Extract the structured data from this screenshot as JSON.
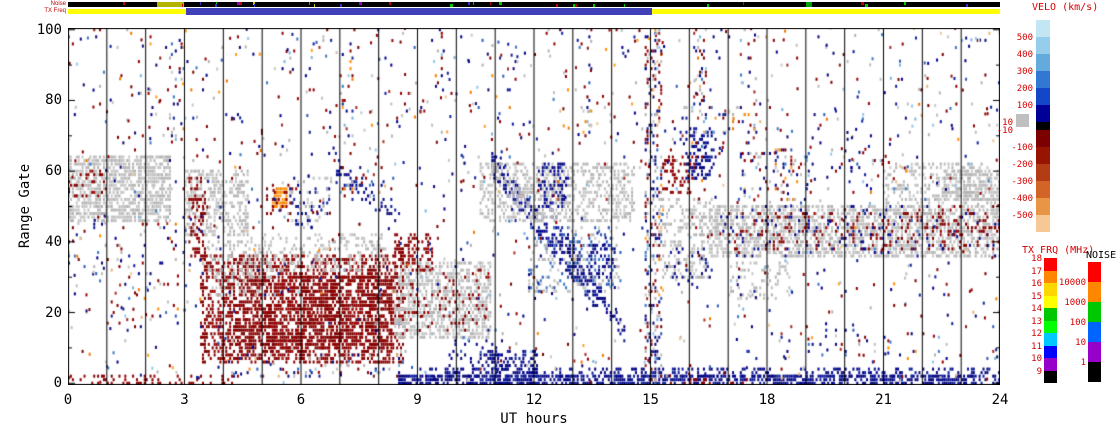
{
  "labels": {
    "ut_hours": "UT hours",
    "range_gate": "Range Gate"
  },
  "strips": {
    "noise_label": "Noise",
    "txfreq_label": "TX Freq",
    "noise_base_color": "#000000",
    "txfreq_base_color": "#ffff00",
    "highlight": {
      "h0": 3.05,
      "h1": 15.05,
      "color": "#4040b8"
    },
    "noise_segments": [
      {
        "h0": 2.3,
        "h1": 3.0,
        "c": "#b4b400"
      },
      {
        "h0": 19.0,
        "h1": 19.15,
        "c": "#00a000"
      }
    ],
    "specks": {
      "count": 30,
      "colors": [
        "#00c800",
        "#c8c800",
        "#3232c8",
        "#c80000",
        "#9600c8"
      ]
    }
  },
  "axes": {
    "x": {
      "label": "UT hours",
      "min": 0,
      "max": 24,
      "ticks": [
        0,
        3,
        6,
        9,
        12,
        15,
        18,
        21,
        24
      ],
      "minor_step": 1
    },
    "y": {
      "label": "Range Gate",
      "min": 0,
      "max": 100,
      "ticks": [
        0,
        20,
        40,
        60,
        80,
        100
      ],
      "minor_step": 10
    }
  },
  "colorbars": {
    "velo": {
      "label": "VELO (km/s)",
      "ticks": [
        {
          "t": "500"
        },
        {
          "t": "400"
        },
        {
          "t": "300"
        },
        {
          "t": "200"
        },
        {
          "t": "100"
        },
        {
          "t": "10",
          "short": true
        },
        {
          "t": "-10",
          "short": true
        },
        {
          "t": "-100"
        },
        {
          "t": "-200"
        },
        {
          "t": "-300"
        },
        {
          "t": "-400"
        },
        {
          "t": "-500"
        }
      ],
      "colors": [
        "#c3e6f5",
        "#96cdeb",
        "#64aadc",
        "#3278d2",
        "#1446c8",
        "#000096",
        "#000000",
        "#7d0000",
        "#961400",
        "#b43c14",
        "#d26428",
        "#e89646",
        "#f5c896"
      ],
      "seg_heights": [
        17,
        17,
        17,
        17,
        17,
        17,
        8,
        17,
        17,
        17,
        17,
        17,
        17
      ],
      "ground_scatter_color": "#bfbfbf"
    },
    "txfrq": {
      "label": "TX FRQ (MHz)",
      "ticks": [
        "18",
        "17",
        "16",
        "15",
        "14",
        "13",
        "12",
        "11",
        "10",
        "9"
      ],
      "colors": [
        "#ff0000",
        "#ff8700",
        "#ffd700",
        "#ffff00",
        "#00c800",
        "#00ff00",
        "#00c8ff",
        "#0000ff",
        "#9600c8",
        "#000000"
      ]
    },
    "noise": {
      "label": "NOISE",
      "ticks": [
        "10000",
        "1000",
        "100",
        "10",
        "1"
      ],
      "colors": [
        "#ff0000",
        "#ff8700",
        "#00c800",
        "#0064ff",
        "#9600c8",
        "#000000"
      ]
    }
  },
  "chart_data": {
    "type": "heatmap",
    "title": "",
    "xlabel": "UT hours",
    "ylabel": "Range Gate",
    "xlim": [
      0,
      24
    ],
    "ylim": [
      0,
      100
    ],
    "grid": "vertical hour lines",
    "legend_position": "right colorbars (velocity km/s, tx frequency MHz, noise)",
    "seed": 1337,
    "palette": {
      "gray": [
        "#bfbfbf",
        "#c9c9c9",
        "#b3b3b3"
      ],
      "dred": [
        "#8b0000",
        "#7d0000",
        "#960000"
      ],
      "red": [
        "#a52a2a",
        "#b03020",
        "#8b1a1a"
      ],
      "blue": [
        "#00008b",
        "#101f9c",
        "#0a0a78"
      ],
      "mblue": [
        "#2e5cb8",
        "#3c78c8"
      ],
      "lblue": [
        "#7ab4e0",
        "#96c8ec"
      ],
      "orange": [
        "#ff8c00",
        "#f07800",
        "#ffa028"
      ],
      "tan": [
        "#f0c896",
        "#e8b478"
      ]
    },
    "mixed_weights": [
      [
        "blue",
        0.3
      ],
      [
        "dred",
        0.24
      ],
      [
        "gray",
        0.2
      ],
      [
        "mblue",
        0.07
      ],
      [
        "lblue",
        0.06
      ],
      [
        "orange",
        0.06
      ],
      [
        "red",
        0.04
      ],
      [
        "tan",
        0.03
      ]
    ],
    "clusters": [
      {
        "t": "r",
        "b": [
          0,
          2.6,
          46,
          64
        ],
        "c": "gray",
        "d": 0.6
      },
      {
        "t": "r",
        "b": [
          0,
          1.0,
          52,
          60
        ],
        "c": "dred",
        "d": 0.15
      },
      {
        "t": "r",
        "b": [
          0,
          3,
          30,
          45
        ],
        "c": "mixed",
        "d": 0.05
      },
      {
        "t": "r",
        "b": [
          1.0,
          2.8,
          16,
          30
        ],
        "c": "mixed",
        "d": 0.07
      },
      {
        "t": "r",
        "b": [
          0,
          4.2,
          0,
          2
        ],
        "c": "dred",
        "d": 0.25
      },
      {
        "t": "r",
        "b": [
          3,
          4.6,
          42,
          60
        ],
        "c": "gray",
        "d": 0.4
      },
      {
        "t": "r",
        "b": [
          3.1,
          3.5,
          36,
          58
        ],
        "c": "dred",
        "d": 0.3
      },
      {
        "t": "r",
        "b": [
          3.4,
          8.6,
          6,
          36
        ],
        "c": "dred",
        "d": 0.45
      },
      {
        "t": "r",
        "b": [
          4.5,
          8.3,
          10,
          30
        ],
        "c": "dred",
        "d": 0.4
      },
      {
        "t": "r",
        "b": [
          3.6,
          5.2,
          25,
          40
        ],
        "c": "gray",
        "d": 0.25
      },
      {
        "t": "r",
        "b": [
          5.0,
          8.2,
          32,
          42
        ],
        "c": "gray",
        "d": 0.25
      },
      {
        "t": "r",
        "b": [
          4.2,
          8.6,
          2,
          8
        ],
        "c": "mixed",
        "d": 0.12
      },
      {
        "t": "r",
        "b": [
          5.25,
          5.62,
          50,
          55
        ],
        "c": "orange",
        "d": 0.8
      },
      {
        "t": "r",
        "b": [
          5.1,
          5.75,
          48,
          56
        ],
        "c": "dred",
        "d": 0.18
      },
      {
        "t": "r",
        "b": [
          5.7,
          6.7,
          44,
          56
        ],
        "c": "blue",
        "d": 0.1
      },
      {
        "t": "r",
        "b": [
          5.7,
          6.8,
          44,
          58
        ],
        "c": "gray",
        "d": 0.1
      },
      {
        "t": "d",
        "b": [
          6.9,
          60,
          8.5,
          46,
          2
        ],
        "c": "blue",
        "d": 0.3
      },
      {
        "t": "r",
        "b": [
          7.0,
          8.5,
          52,
          62
        ],
        "c": "mixed",
        "d": 0.1
      },
      {
        "t": "r",
        "b": [
          8.4,
          10.9,
          13,
          34
        ],
        "c": "gray",
        "d": 0.5
      },
      {
        "t": "r",
        "b": [
          8.4,
          9.4,
          32,
          42
        ],
        "c": "dred",
        "d": 0.35
      },
      {
        "t": "r",
        "b": [
          8.6,
          10.9,
          15,
          32
        ],
        "c": "dred",
        "d": 0.1
      },
      {
        "t": "r",
        "b": [
          8.5,
          24,
          0,
          2
        ],
        "c": "blue",
        "d": 0.6
      },
      {
        "t": "r",
        "b": [
          9.0,
          24,
          2,
          4
        ],
        "c": "blue",
        "d": 0.25
      },
      {
        "t": "r",
        "b": [
          9.8,
          11.2,
          2,
          12
        ],
        "c": "blue",
        "d": 0.18
      },
      {
        "t": "r",
        "b": [
          10.9,
          12.1,
          0,
          9
        ],
        "c": "blue",
        "d": 0.4
      },
      {
        "t": "d",
        "b": [
          10.9,
          62,
          13.6,
          24,
          3
        ],
        "c": "blue",
        "d": 0.5
      },
      {
        "t": "d",
        "b": [
          12.3,
          50,
          14.3,
          14,
          2
        ],
        "c": "blue",
        "d": 0.3
      },
      {
        "t": "r",
        "b": [
          10.6,
          14.6,
          46,
          62
        ],
        "c": "gray",
        "d": 0.4
      },
      {
        "t": "r",
        "b": [
          12.1,
          12.9,
          50,
          62
        ],
        "c": "blue",
        "d": 0.35
      },
      {
        "t": "r",
        "b": [
          11.8,
          14.2,
          26,
          44
        ],
        "c": "gray",
        "d": 0.12
      },
      {
        "t": "r",
        "b": [
          11.8,
          14.3,
          26,
          44
        ],
        "c": "mblue",
        "d": 0.1
      },
      {
        "t": "r",
        "b": [
          13.4,
          14.1,
          30,
          40
        ],
        "c": "blue",
        "d": 0.3
      },
      {
        "t": "r",
        "b": [
          2.6,
          2.95,
          55,
          95
        ],
        "c": "mixed",
        "d": 0.1
      },
      {
        "t": "r",
        "b": [
          7.0,
          7.3,
          60,
          95
        ],
        "c": "mixed",
        "d": 0.09
      },
      {
        "t": "r",
        "b": [
          9.4,
          9.7,
          85,
          100
        ],
        "c": "mixed",
        "d": 0.12
      },
      {
        "t": "r",
        "b": [
          13.2,
          13.5,
          70,
          100
        ],
        "c": "mixed",
        "d": 0.12
      },
      {
        "t": "r",
        "b": [
          14.85,
          15.3,
          0,
          100
        ],
        "c": "mixed",
        "d": 0.3
      },
      {
        "t": "r",
        "b": [
          15.3,
          16.2,
          54,
          64
        ],
        "c": "dred",
        "d": 0.35
      },
      {
        "t": "r",
        "b": [
          15.9,
          16.7,
          58,
          72
        ],
        "c": "blue",
        "d": 0.3
      },
      {
        "t": "r",
        "b": [
          16.1,
          16.45,
          70,
          100
        ],
        "c": "mixed",
        "d": 0.2
      },
      {
        "t": "r",
        "b": [
          15.2,
          16.8,
          42,
          52
        ],
        "c": "gray",
        "d": 0.3
      },
      {
        "t": "r",
        "b": [
          15.3,
          16.5,
          30,
          40
        ],
        "c": "gray",
        "d": 0.3
      },
      {
        "t": "r",
        "b": [
          15.4,
          16.6,
          28,
          38
        ],
        "c": "blue",
        "d": 0.08
      },
      {
        "t": "r",
        "b": [
          16.5,
          24,
          36,
          50
        ],
        "c": "gray",
        "d": 0.55
      },
      {
        "t": "r",
        "b": [
          17,
          24,
          38,
          48
        ],
        "c": "dred",
        "d": 0.12
      },
      {
        "t": "r",
        "b": [
          16.8,
          24,
          36,
          50
        ],
        "c": "blue",
        "d": 0.05
      },
      {
        "t": "r",
        "b": [
          17.0,
          18.6,
          24,
          34
        ],
        "c": "gray",
        "d": 0.2
      },
      {
        "t": "r",
        "b": [
          17.3,
          19.2,
          52,
          66
        ],
        "c": "mixed",
        "d": 0.15
      },
      {
        "t": "r",
        "b": [
          19.5,
          21.0,
          54,
          64
        ],
        "c": "mixed",
        "d": 0.07
      },
      {
        "t": "r",
        "b": [
          21,
          24,
          48,
          62
        ],
        "c": "gray",
        "d": 0.3
      },
      {
        "t": "r",
        "b": [
          22.5,
          24,
          52,
          60
        ],
        "c": "gray",
        "d": 0.5
      },
      {
        "t": "r",
        "b": [
          21.5,
          24,
          42,
          50
        ],
        "c": "dred",
        "d": 0.1
      },
      {
        "t": "r",
        "b": [
          15.5,
          17.5,
          0,
          1
        ],
        "c": "dred",
        "d": 0.25
      },
      {
        "t": "r",
        "b": [
          18,
          24,
          6,
          16
        ],
        "c": "mixed",
        "d": 0.03
      },
      {
        "t": "r",
        "b": [
          15.5,
          18,
          68,
          80
        ],
        "c": "mixed",
        "d": 0.06
      },
      {
        "t": "r",
        "b": [
          0,
          24,
          64,
          100
        ],
        "c": "mixed",
        "d": 0.012
      },
      {
        "t": "r",
        "b": [
          0,
          24,
          4,
          100
        ],
        "c": "mixed",
        "d": 0.006
      }
    ],
    "noise_points": {
      "count": 900
    }
  }
}
